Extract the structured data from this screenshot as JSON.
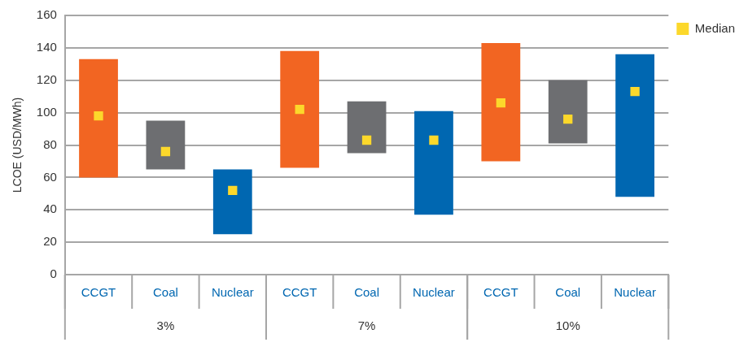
{
  "chart_data": {
    "type": "bar",
    "y_label": "LCOE (USD/MWh)",
    "categories": [
      "CCGT",
      "Coal",
      "Nuclear",
      "CCGT",
      "Coal",
      "Nuclear",
      "CCGT",
      "Coal",
      "Nuclear"
    ],
    "groups": [
      "3%",
      "3%",
      "3%",
      "7%",
      "7%",
      "7%",
      "10%",
      "10%",
      "10%"
    ],
    "series": [
      {
        "type": "bar",
        "low": [
          60,
          65,
          25,
          66,
          75,
          37,
          70,
          81,
          48
        ],
        "high": [
          133,
          95,
          65,
          138,
          107,
          101,
          143,
          120,
          136
        ],
        "colors": [
          "#f26522",
          "#6d6e71",
          "#0067b1",
          "#f26522",
          "#6d6e71",
          "#0067b1",
          "#f26522",
          "#6d6e71",
          "#0067b1"
        ]
      },
      {
        "name": "Median",
        "type": "scatter",
        "marker": "square",
        "color": "#fcd82b",
        "values": [
          98,
          76,
          52,
          102,
          83,
          83,
          106,
          96,
          113
        ]
      }
    ],
    "ylim": [
      0,
      160
    ],
    "yticks": [
      0,
      20,
      40,
      60,
      80,
      100,
      120,
      140,
      160
    ],
    "grid": "y",
    "legend": "right"
  }
}
